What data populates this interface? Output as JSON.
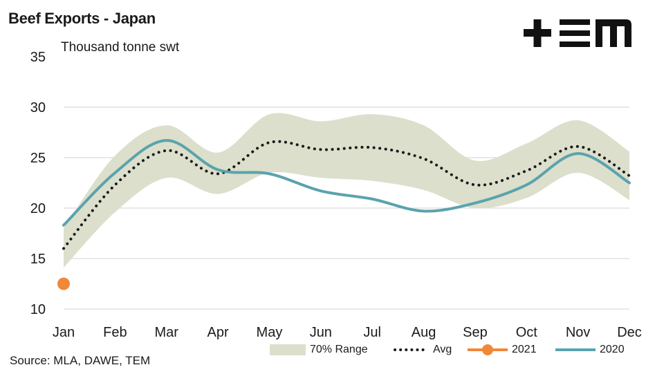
{
  "chart_data": {
    "type": "line",
    "title": "Beef Exports - Japan",
    "subtitle": "Thousand tonne swt",
    "source": "Source: MLA, DAWE, TEM",
    "categories": [
      "Jan",
      "Feb",
      "Mar",
      "Apr",
      "May",
      "Jun",
      "Jul",
      "Aug",
      "Sep",
      "Oct",
      "Nov",
      "Dec"
    ],
    "ylim": [
      10,
      35
    ],
    "yticks": [
      10,
      15,
      20,
      25,
      30,
      35
    ],
    "grid": true,
    "legend_position": "bottom",
    "range": {
      "name": "70% Range",
      "color": "#dcdfcb",
      "low": [
        14.1,
        19.6,
        23.0,
        21.4,
        23.5,
        23.0,
        22.7,
        21.8,
        20.0,
        21.0,
        23.5,
        20.8
      ],
      "high": [
        18.0,
        25.2,
        28.2,
        25.5,
        29.3,
        28.6,
        29.3,
        28.2,
        24.7,
        26.4,
        28.7,
        25.6
      ]
    },
    "series": [
      {
        "name": "Avg",
        "style": "dotted",
        "color": "#1a1a1a",
        "values": [
          16.0,
          22.3,
          25.7,
          23.4,
          26.5,
          25.8,
          26.0,
          24.9,
          22.3,
          23.7,
          26.1,
          23.2
        ]
      },
      {
        "name": "2021",
        "style": "marker",
        "color": "#f0883a",
        "values": [
          12.5,
          null,
          null,
          null,
          null,
          null,
          null,
          null,
          null,
          null,
          null,
          null
        ]
      },
      {
        "name": "2020",
        "style": "solid",
        "color": "#5aa3ad",
        "values": [
          18.3,
          23.5,
          26.7,
          23.8,
          23.4,
          21.7,
          20.9,
          19.7,
          20.5,
          22.3,
          25.4,
          22.5
        ]
      }
    ],
    "legend": [
      "70% Range",
      "Avg",
      "2021",
      "2020"
    ]
  },
  "colors": {
    "grid": "#d9d9d9",
    "text": "#1a1a1a",
    "logo": "#111111"
  },
  "logo_icon": "tem-logo"
}
